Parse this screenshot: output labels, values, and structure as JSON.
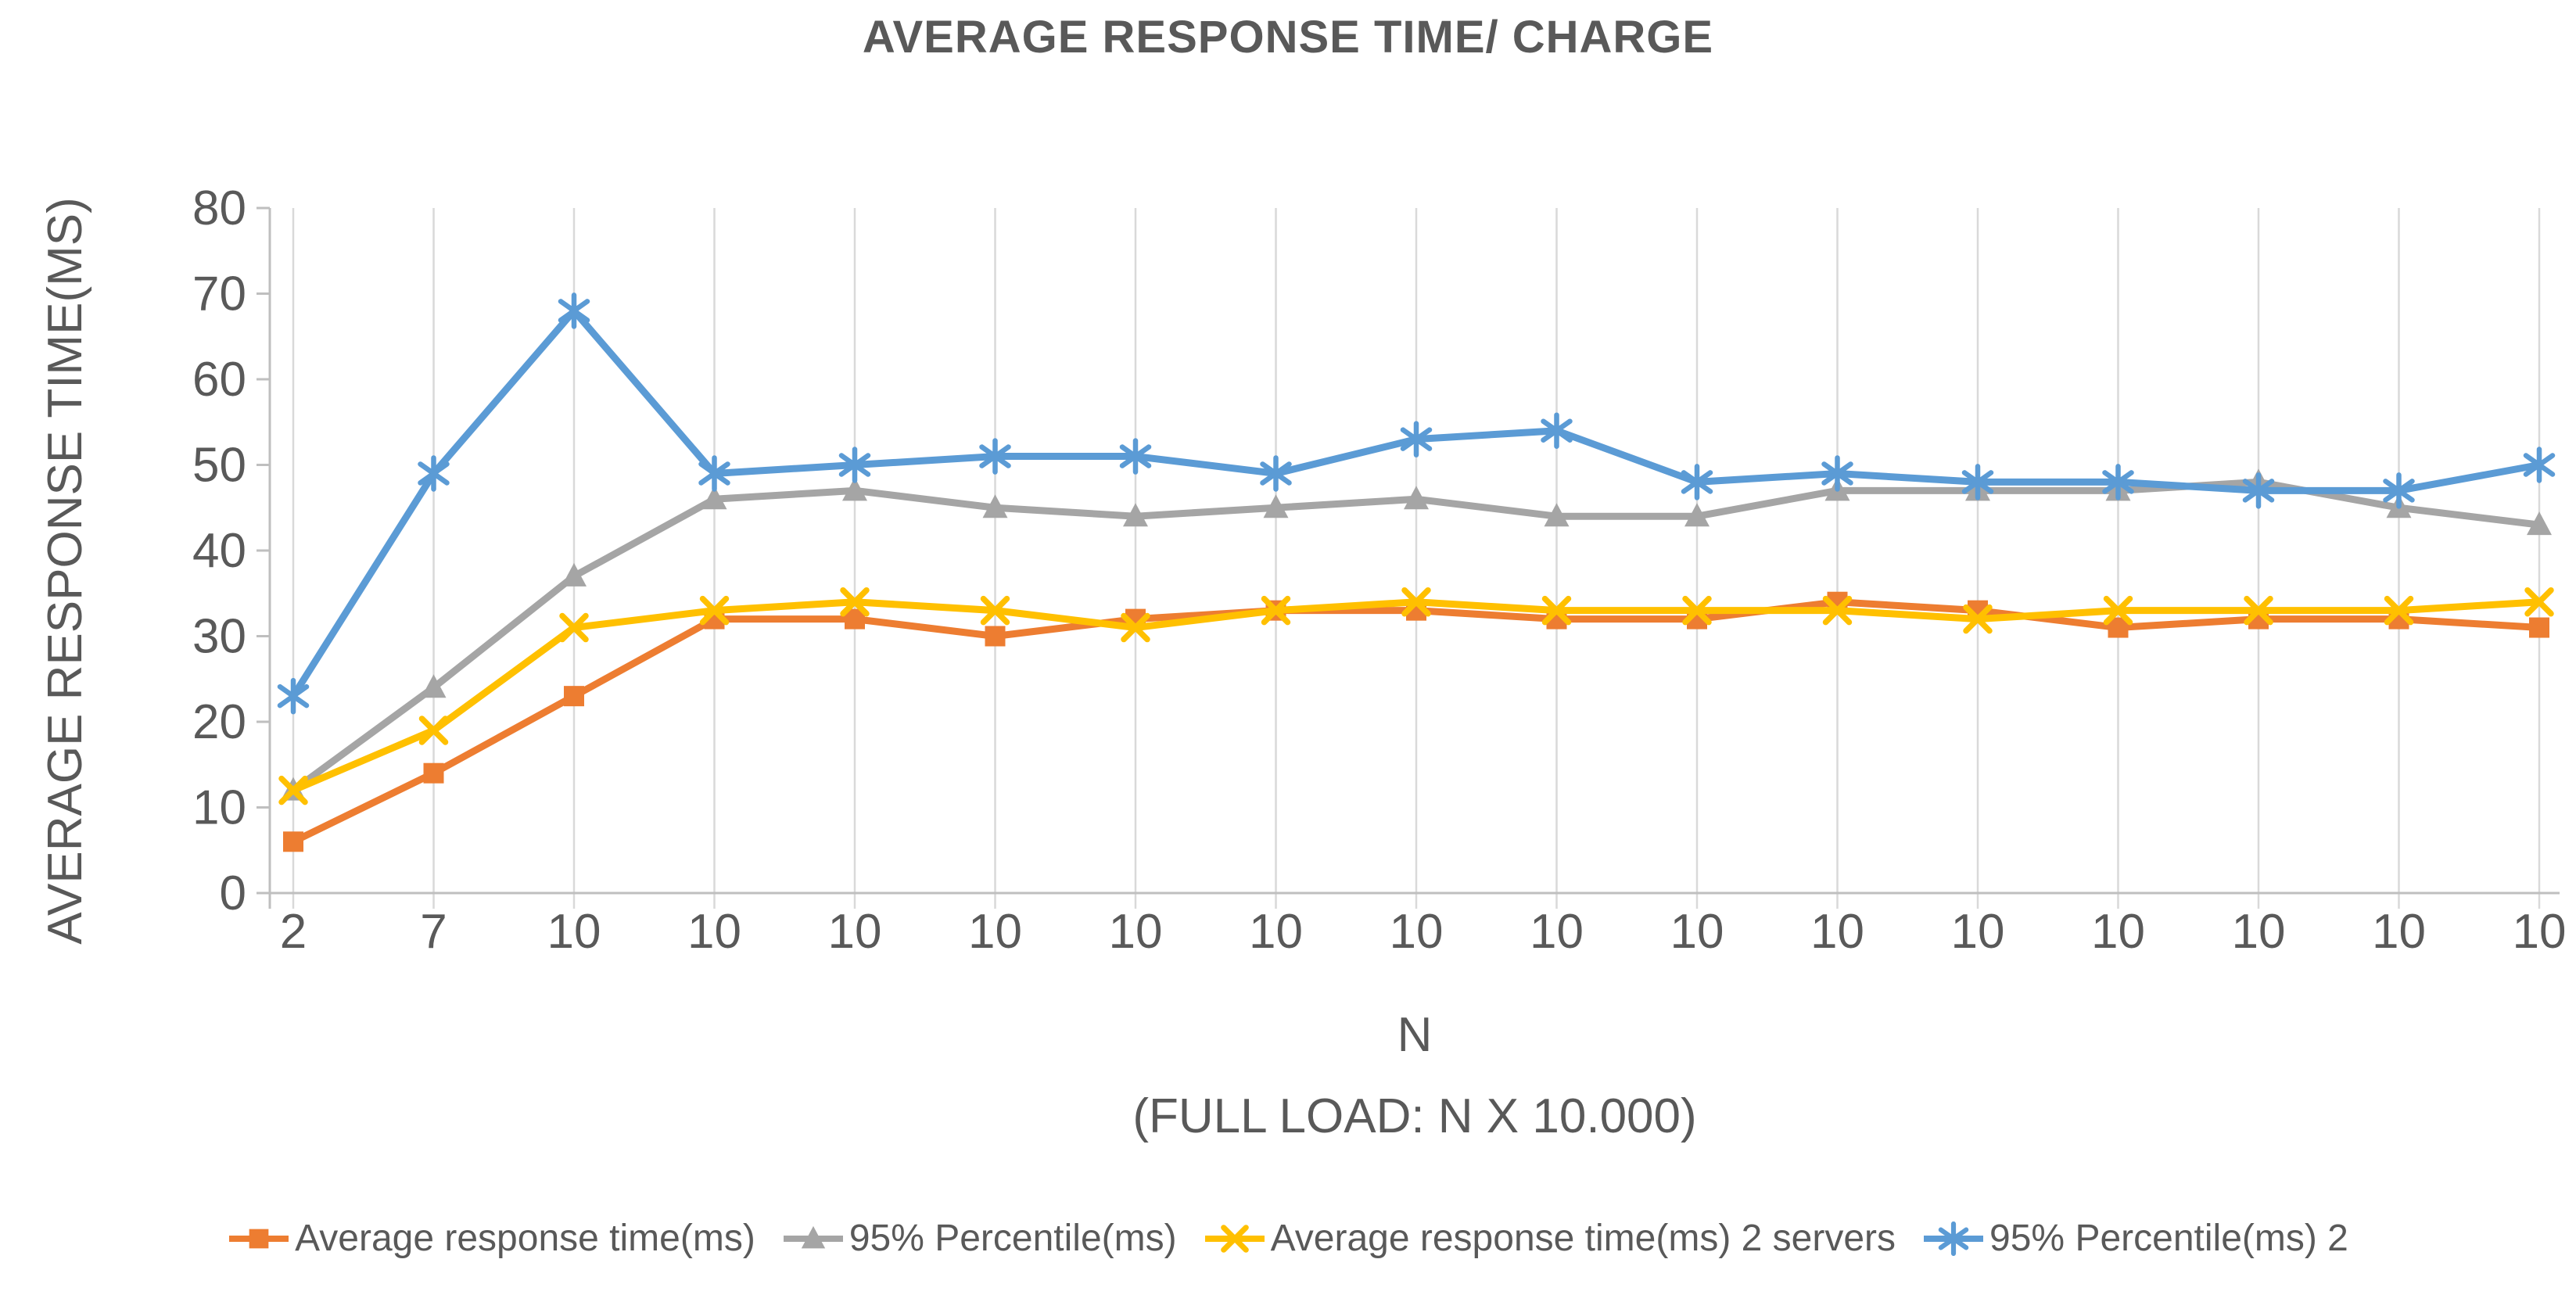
{
  "colors": {
    "text": "#595959",
    "grid": "#D9D9D9",
    "axis": "#BFBFBF",
    "background": "#FFFFFF"
  },
  "chart_data": {
    "type": "line",
    "title": "AVERAGE RESPONSE TIME/ CHARGE",
    "ylabel": "AVERAGE RESPONSE TIME(MS)",
    "xlabel": "N",
    "xlabel_line2": "(FULL LOAD: N X 10.000)",
    "categories": [
      "2",
      "7",
      "10",
      "10",
      "10",
      "10",
      "10",
      "10",
      "10",
      "10",
      "10",
      "10",
      "10",
      "10",
      "10",
      "10",
      "10"
    ],
    "yticks": [
      0,
      10,
      20,
      30,
      40,
      50,
      60,
      70,
      80
    ],
    "ylim": [
      0,
      80
    ],
    "grid": "vertical-only",
    "legend_position": "bottom",
    "series": [
      {
        "name": "Average response time(ms)",
        "color": "#ED7D31",
        "marker": "square",
        "values": [
          6,
          14,
          23,
          32,
          32,
          30,
          32,
          33,
          33,
          32,
          32,
          34,
          33,
          31,
          32,
          32,
          31
        ]
      },
      {
        "name": "95% Percentile(ms)",
        "color": "#A5A5A5",
        "marker": "triangle",
        "values": [
          12,
          24,
          37,
          46,
          47,
          45,
          44,
          45,
          46,
          44,
          44,
          47,
          47,
          47,
          48,
          45,
          43
        ]
      },
      {
        "name": "Average response time(ms) 2 servers",
        "color": "#FFC000",
        "marker": "x",
        "values": [
          12,
          19,
          31,
          33,
          34,
          33,
          31,
          33,
          34,
          33,
          33,
          33,
          32,
          33,
          33,
          33,
          34
        ]
      },
      {
        "name": "95% Percentile(ms) 2",
        "color": "#5B9BD5",
        "marker": "asterisk",
        "values": [
          23,
          49,
          68,
          49,
          50,
          51,
          51,
          49,
          53,
          54,
          48,
          49,
          48,
          48,
          47,
          47,
          50
        ]
      }
    ]
  }
}
